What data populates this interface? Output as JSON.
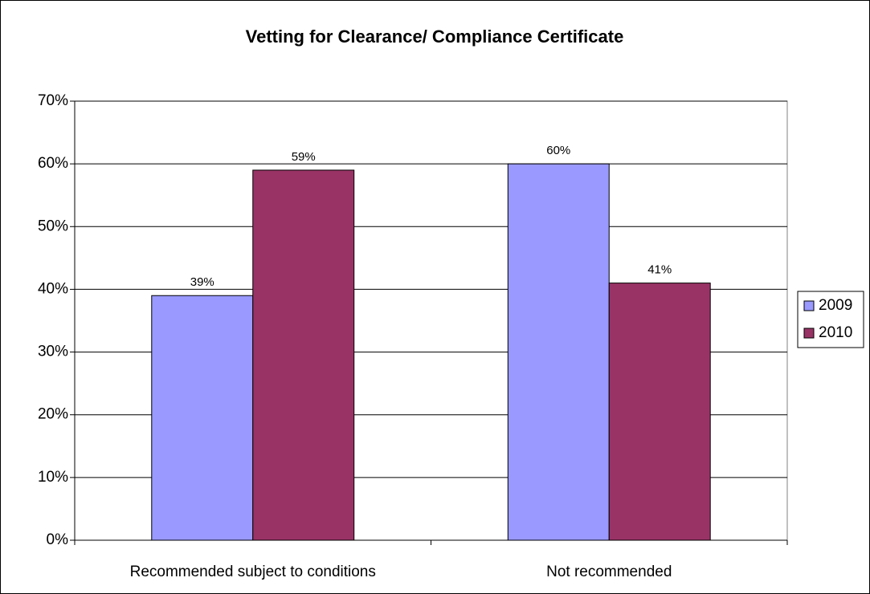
{
  "chart_data": {
    "type": "bar",
    "title": "Vetting for Clearance/ Compliance Certificate",
    "categories": [
      "Recommended subject to conditions",
      "Not recommended"
    ],
    "series": [
      {
        "name": "2009",
        "color": "#9999ff",
        "values": [
          39,
          60
        ],
        "value_labels": [
          "39%",
          "60%"
        ]
      },
      {
        "name": "2010",
        "color": "#993366",
        "values": [
          59,
          41
        ],
        "value_labels": [
          "59%",
          "41%"
        ]
      }
    ],
    "ylim": [
      0,
      70
    ],
    "yticks": [
      {
        "value": 0,
        "label": "0%"
      },
      {
        "value": 10,
        "label": "10%"
      },
      {
        "value": 20,
        "label": "20%"
      },
      {
        "value": 30,
        "label": "30%"
      },
      {
        "value": 40,
        "label": "40%"
      },
      {
        "value": 50,
        "label": "50%"
      },
      {
        "value": 60,
        "label": "60%"
      },
      {
        "value": 70,
        "label": "70%"
      }
    ],
    "grid": true,
    "legend": "right"
  }
}
